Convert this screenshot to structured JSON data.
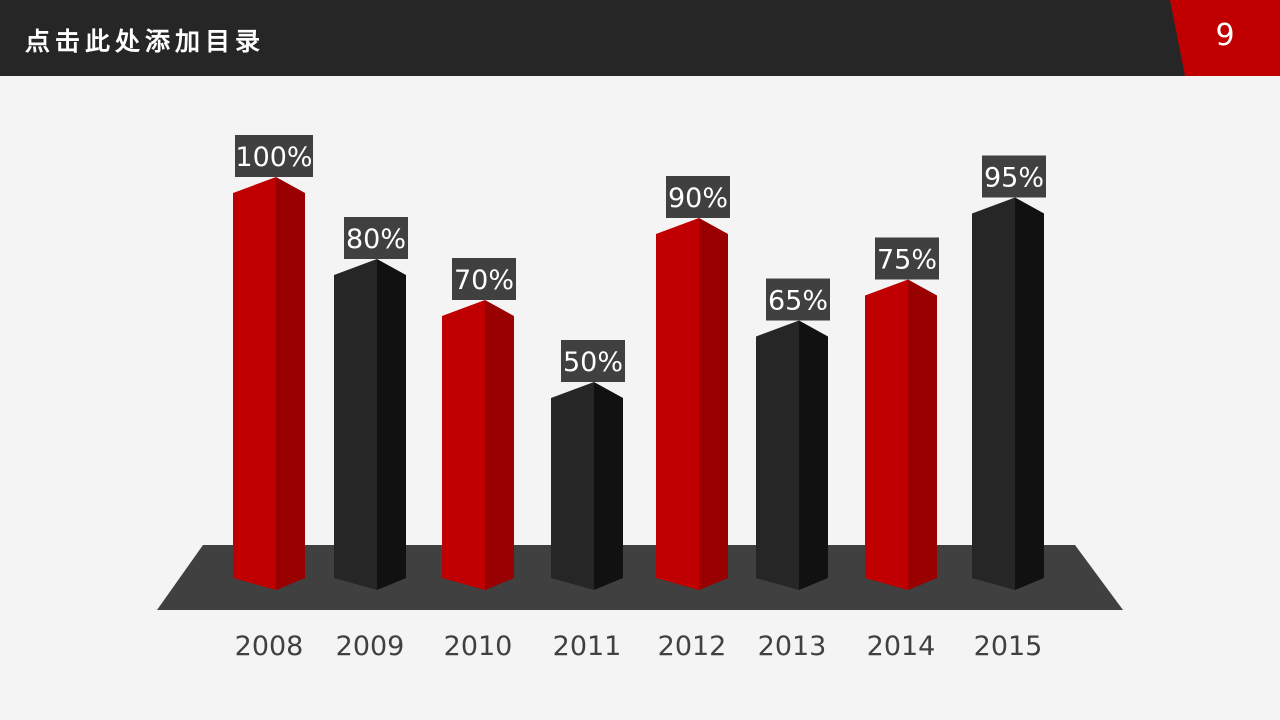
{
  "header": {
    "title": "点击此处添加目录",
    "page_number": "9"
  },
  "colors": {
    "header_bg": "#262626",
    "accent": "#c00000",
    "red_side": "#990000",
    "dark_front": "#262626",
    "dark_side": "#111111",
    "platform": "#404040",
    "label_bg": "#404040"
  },
  "chart_data": {
    "type": "bar",
    "title": "",
    "xlabel": "",
    "ylabel": "",
    "ylim": [
      0,
      100
    ],
    "categories": [
      "2008",
      "2009",
      "2010",
      "2011",
      "2012",
      "2013",
      "2014",
      "2015"
    ],
    "values": [
      100,
      80,
      70,
      50,
      90,
      65,
      75,
      95
    ],
    "labels": [
      "100%",
      "80%",
      "70%",
      "50%",
      "90%",
      "65%",
      "75%",
      "95%"
    ],
    "bar_colors": [
      "red",
      "dark",
      "red",
      "dark",
      "red",
      "dark",
      "red",
      "dark"
    ]
  }
}
